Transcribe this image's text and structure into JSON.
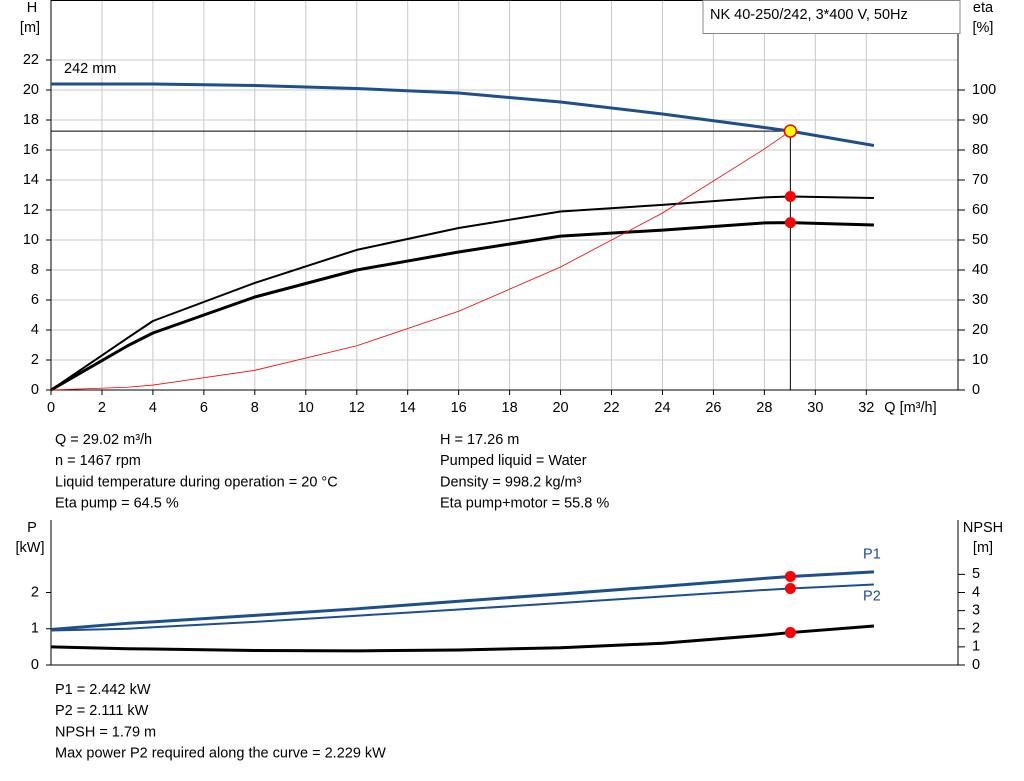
{
  "chart_data": [
    {
      "type": "line",
      "title": "NK 40-250/242, 3*400 V, 50Hz",
      "annotation": "242 mm",
      "y_label": "H",
      "y_unit": "[m]",
      "y2_label": "eta",
      "y2_unit": "[%]",
      "x_label": "Q [m³/h]",
      "x": [
        0,
        3,
        4,
        8,
        12,
        16,
        20,
        24,
        28,
        29.02,
        32.3
      ],
      "xlim": [
        0,
        35.6
      ],
      "xticks": [
        0,
        2,
        4,
        6,
        8,
        10,
        12,
        14,
        16,
        18,
        20,
        22,
        24,
        26,
        28,
        30,
        32
      ],
      "ylim": [
        0,
        26
      ],
      "yticks": [
        0,
        2,
        4,
        6,
        8,
        10,
        12,
        14,
        16,
        18,
        20,
        22
      ],
      "y2lim": [
        0,
        130
      ],
      "y2ticks": [
        0,
        10,
        20,
        30,
        40,
        50,
        60,
        70,
        80,
        90,
        100
      ],
      "grid": true,
      "operating_point": {
        "q": 29.02,
        "h": 17.26
      },
      "series": [
        {
          "color": "#1f4e8c",
          "marker_color": "#ffff00",
          "values": [
            20.4,
            20.4,
            20.4,
            20.3,
            20.1,
            19.8,
            19.2,
            18.4,
            17.5,
            17.26,
            16.3
          ]
        },
        {
          "color": "#000000",
          "marker_color": "#ff0000",
          "axis": "y2",
          "values": [
            0,
            17.3,
            23,
            35.7,
            46.7,
            54,
            59.5,
            61.7,
            64.2,
            64.5,
            64
          ]
        },
        {
          "color": "#000000",
          "marker_color": "#ff0000",
          "axis": "y2",
          "values": [
            0,
            14.7,
            19,
            31,
            40,
            46,
            51.3,
            53.3,
            55.7,
            55.8,
            55
          ]
        },
        {
          "color": "#ff0000",
          "values": [
            0,
            0.184,
            0.328,
            1.312,
            2.95,
            5.25,
            8.2,
            11.8,
            16.07,
            17.26,
            null
          ]
        }
      ]
    },
    {
      "type": "line",
      "y_label": "P",
      "y_unit": "[kW]",
      "y2_label": "NPSH",
      "y2_unit": "[m]",
      "x": [
        0,
        3,
        4,
        8,
        12,
        16,
        20,
        24,
        28,
        29.02,
        32.3
      ],
      "xlim": [
        0,
        35.6
      ],
      "ylim": [
        0,
        4
      ],
      "yticks": [
        0,
        1,
        2
      ],
      "y2lim": [
        0,
        8
      ],
      "y2ticks": [
        0,
        1,
        2,
        3,
        4,
        5
      ],
      "operating_q": 29.02,
      "series": [
        {
          "name": "P1",
          "color": "#1f4e8c",
          "marker_color": "#ff0000",
          "values": [
            0.98,
            1.15,
            1.19,
            1.37,
            1.55,
            1.76,
            1.96,
            2.17,
            2.39,
            2.442,
            2.57
          ]
        },
        {
          "name": "P2",
          "color": "#1f4e8c",
          "marker_color": "#ff0000",
          "values": [
            0.95,
            1.0,
            1.04,
            1.19,
            1.36,
            1.53,
            1.71,
            1.89,
            2.07,
            2.111,
            2.22
          ]
        },
        {
          "color": "#000000",
          "marker_color": "#ff0000",
          "axis": "y2",
          "values": [
            1.0,
            0.9,
            0.88,
            0.8,
            0.78,
            0.83,
            0.95,
            1.2,
            1.65,
            1.79,
            2.15
          ]
        }
      ]
    }
  ],
  "operating_info": {
    "left": [
      "Q = 29.02 m³/h",
      "n = 1467 rpm",
      "Liquid temperature during operation = 20 °C",
      "Eta pump = 64.5 %"
    ],
    "right": [
      "H = 17.26 m",
      "Pumped liquid = Water",
      "Density = 998.2 kg/m³",
      "Eta pump+motor = 55.8 %"
    ]
  },
  "power_info": [
    "P1 = 2.442 kW",
    "P2 = 2.111 kW",
    "NPSH = 1.79 m",
    "Max power P2 required along the curve = 2.229 kW"
  ]
}
